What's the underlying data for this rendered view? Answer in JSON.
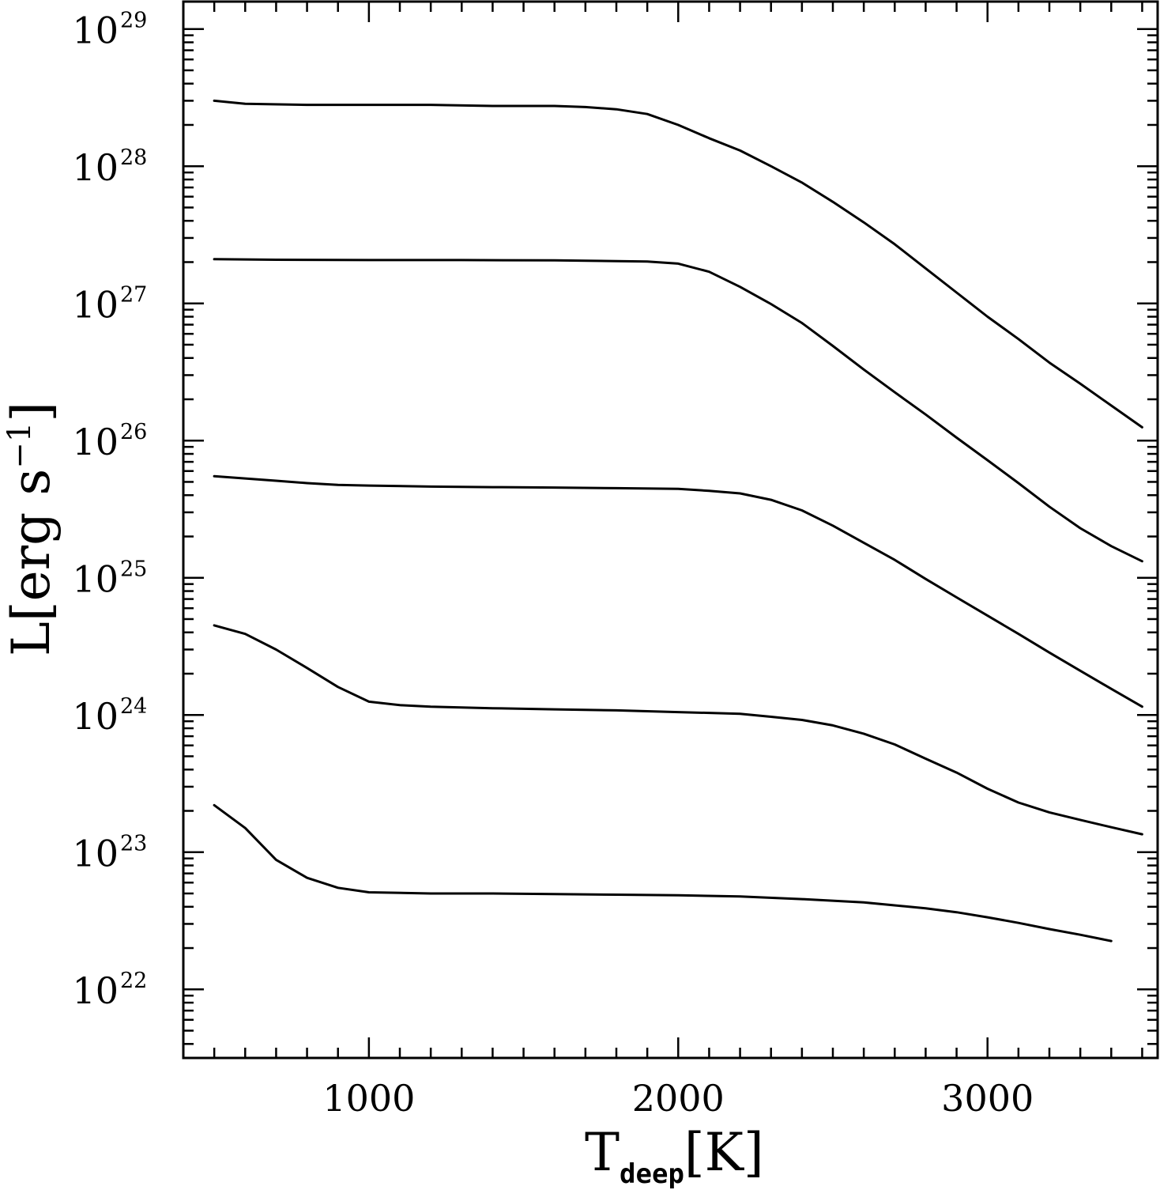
{
  "chart_data": {
    "type": "line",
    "title": "",
    "xlabel": {
      "main": "T",
      "sub": "deep",
      "unit": "K"
    },
    "ylabel": {
      "main": "L",
      "unit": "erg s",
      "unit_exp": "−1"
    },
    "xlim": [
      400,
      3550
    ],
    "ylim_log10": [
      21.5,
      29.2
    ],
    "yscale": "log",
    "x_ticks": [
      1000,
      2000,
      3000
    ],
    "x_tick_labels": [
      "1000",
      "2000",
      "3000"
    ],
    "y_tick_exponents": [
      22,
      23,
      24,
      25,
      26,
      27,
      28,
      29
    ],
    "y_tick_base": "10",
    "grid": false,
    "series": [
      {
        "x": [
          500,
          600,
          800,
          1000,
          1200,
          1400,
          1600,
          1700,
          1800,
          1900,
          2000,
          2100,
          2200,
          2300,
          2400,
          2500,
          2600,
          2700,
          2800,
          2900,
          3000,
          3100,
          3200,
          3300,
          3400,
          3500
        ],
        "y": [
          3e+28,
          2.85e+28,
          2.8e+28,
          2.8e+28,
          2.8e+28,
          2.75e+28,
          2.75e+28,
          2.7e+28,
          2.6e+28,
          2.4e+28,
          2e+28,
          1.6e+28,
          1.3e+28,
          1e+28,
          7.6e+27,
          5.5e+27,
          3.9e+27,
          2.7e+27,
          1.8e+27,
          1.2e+27,
          8e+26,
          5.5e+26,
          3.7e+26,
          2.6e+26,
          1.8e+26,
          1.25e+26
        ]
      },
      {
        "x": [
          500,
          700,
          1000,
          1300,
          1600,
          1900,
          2000,
          2100,
          2200,
          2300,
          2400,
          2500,
          2600,
          2700,
          2800,
          2900,
          3000,
          3100,
          3200,
          3300,
          3400,
          3500
        ],
        "y": [
          2.1e+27,
          2.08e+27,
          2.07e+27,
          2.07e+27,
          2.06e+27,
          2.02e+27,
          1.95e+27,
          1.7e+27,
          1.32e+27,
          9.9e+26,
          7.2e+26,
          4.9e+26,
          3.3e+26,
          2.25e+26,
          1.55e+26,
          1.05e+26,
          7.2e+25,
          4.9e+25,
          3.3e+25,
          2.3e+25,
          1.7e+25,
          1.32e+25
        ]
      },
      {
        "x": [
          500,
          600,
          700,
          800,
          900,
          1000,
          1200,
          1400,
          1600,
          1800,
          2000,
          2100,
          2200,
          2300,
          2400,
          2500,
          2600,
          2700,
          2800,
          2900,
          3000,
          3100,
          3200,
          3300,
          3400,
          3500
        ],
        "y": [
          5.5e+25,
          5.3e+25,
          5.1e+25,
          4.9e+25,
          4.75e+25,
          4.7e+25,
          4.62e+25,
          4.58e+25,
          4.55e+25,
          4.5e+25,
          4.45e+25,
          4.3e+25,
          4.12e+25,
          3.7e+25,
          3.1e+25,
          2.4e+25,
          1.8e+25,
          1.35e+25,
          9.8e+24,
          7.2e+24,
          5.3e+24,
          3.9e+24,
          2.85e+24,
          2.1e+24,
          1.55e+24,
          1.15e+24
        ]
      },
      {
        "x": [
          500,
          600,
          700,
          800,
          900,
          1000,
          1100,
          1200,
          1400,
          1600,
          1800,
          2000,
          2200,
          2300,
          2400,
          2500,
          2600,
          2700,
          2800,
          2900,
          3000,
          3100,
          3200,
          3300,
          3400,
          3500
        ],
        "y": [
          4.5e+24,
          3.9e+24,
          3e+24,
          2.2e+24,
          1.6e+24,
          1.25e+24,
          1.18e+24,
          1.15e+24,
          1.12e+24,
          1.1e+24,
          1.08e+24,
          1.05e+24,
          1.02e+24,
          9.7e+23,
          9.2e+23,
          8.4e+23,
          7.3e+23,
          6.1e+23,
          4.8e+23,
          3.8e+23,
          2.9e+23,
          2.3e+23,
          1.95e+23,
          1.72e+23,
          1.52e+23,
          1.35e+23
        ]
      },
      {
        "x": [
          500,
          600,
          700,
          800,
          900,
          1000,
          1200,
          1400,
          1600,
          1800,
          2000,
          2200,
          2400,
          2600,
          2800,
          2900,
          3000,
          3100,
          3200,
          3300,
          3400
        ],
        "y": [
          2.2e+23,
          1.5e+23,
          8.8e+22,
          6.5e+22,
          5.5e+22,
          5.1e+22,
          5e+22,
          5e+22,
          4.95e+22,
          4.9e+22,
          4.85e+22,
          4.75e+22,
          4.55e+22,
          4.3e+22,
          3.9e+22,
          3.65e+22,
          3.35e+22,
          3.05e+22,
          2.75e+22,
          2.5e+22,
          2.25e+22
        ]
      }
    ]
  }
}
